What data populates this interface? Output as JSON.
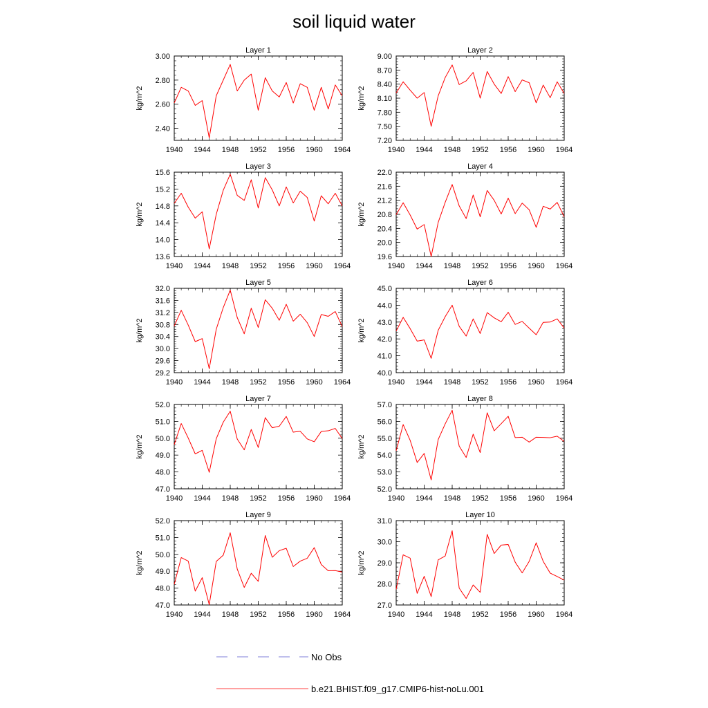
{
  "figure": {
    "title": "soil liquid water",
    "legend": [
      {
        "label": "No Obs",
        "color": "#5555cc",
        "dash": true
      },
      {
        "label": "b.e21.BHIST.f09_g17.CMIP6-hist-noLu.001",
        "color": "#ff0000",
        "dash": false
      }
    ]
  },
  "chart_data": [
    {
      "type": "line",
      "title": "Layer 1",
      "ylabel": "kg/m^2",
      "x": [
        1940,
        1941,
        1942,
        1943,
        1944,
        1945,
        1946,
        1947,
        1948,
        1949,
        1950,
        1951,
        1952,
        1953,
        1954,
        1955,
        1956,
        1957,
        1958,
        1959,
        1960,
        1961,
        1962,
        1963,
        1964
      ],
      "xticks": [
        1940,
        1944,
        1948,
        1952,
        1956,
        1960,
        1964
      ],
      "xlim": [
        1940,
        1964
      ],
      "yticks": [
        "2.40",
        "2.60",
        "2.80",
        "3.00"
      ],
      "ylim": [
        2.3,
        3.0
      ],
      "series": [
        {
          "name": "b.e21.BHIST.f09_g17.CMIP6-hist-noLu.001",
          "color": "#ff0000",
          "values": [
            2.61,
            2.74,
            2.71,
            2.59,
            2.63,
            2.32,
            2.67,
            2.8,
            2.93,
            2.71,
            2.8,
            2.85,
            2.55,
            2.82,
            2.71,
            2.66,
            2.78,
            2.61,
            2.77,
            2.74,
            2.55,
            2.74,
            2.56,
            2.76,
            2.67
          ]
        }
      ]
    },
    {
      "type": "line",
      "title": "Layer 2",
      "ylabel": "kg/m^2",
      "x": [
        1940,
        1941,
        1942,
        1943,
        1944,
        1945,
        1946,
        1947,
        1948,
        1949,
        1950,
        1951,
        1952,
        1953,
        1954,
        1955,
        1956,
        1957,
        1958,
        1959,
        1960,
        1961,
        1962,
        1963,
        1964
      ],
      "xticks": [
        1940,
        1944,
        1948,
        1952,
        1956,
        1960,
        1964
      ],
      "xlim": [
        1940,
        1964
      ],
      "yticks": [
        "7.20",
        "7.50",
        "7.80",
        "8.10",
        "8.40",
        "8.70",
        "9.00"
      ],
      "ylim": [
        7.2,
        9.0
      ],
      "series": [
        {
          "name": "b.e21.BHIST.f09_g17.CMIP6-hist-noLu.001",
          "color": "#ff0000",
          "values": [
            8.21,
            8.45,
            8.27,
            8.1,
            8.22,
            7.5,
            8.15,
            8.54,
            8.81,
            8.39,
            8.47,
            8.65,
            8.1,
            8.67,
            8.4,
            8.2,
            8.56,
            8.24,
            8.49,
            8.43,
            8.0,
            8.38,
            8.11,
            8.45,
            8.2
          ]
        }
      ]
    },
    {
      "type": "line",
      "title": "Layer 3",
      "ylabel": "kg/m^2",
      "x": [
        1940,
        1941,
        1942,
        1943,
        1944,
        1945,
        1946,
        1947,
        1948,
        1949,
        1950,
        1951,
        1952,
        1953,
        1954,
        1955,
        1956,
        1957,
        1958,
        1959,
        1960,
        1961,
        1962,
        1963,
        1964
      ],
      "xticks": [
        1940,
        1944,
        1948,
        1952,
        1956,
        1960,
        1964
      ],
      "xlim": [
        1940,
        1964
      ],
      "yticks": [
        "13.6",
        "14.0",
        "14.4",
        "14.8",
        "15.2",
        "15.6"
      ],
      "ylim": [
        13.6,
        15.6
      ],
      "series": [
        {
          "name": "b.e21.BHIST.f09_g17.CMIP6-hist-noLu.001",
          "color": "#ff0000",
          "values": [
            14.86,
            15.1,
            14.77,
            14.51,
            14.66,
            13.78,
            14.6,
            15.17,
            15.55,
            15.05,
            14.93,
            15.42,
            14.75,
            15.47,
            15.18,
            14.8,
            15.25,
            14.87,
            15.15,
            15.0,
            14.44,
            15.04,
            14.85,
            15.1,
            14.8
          ]
        }
      ]
    },
    {
      "type": "line",
      "title": "Layer 4",
      "ylabel": "kg/m^2",
      "x": [
        1940,
        1941,
        1942,
        1943,
        1944,
        1945,
        1946,
        1947,
        1948,
        1949,
        1950,
        1951,
        1952,
        1953,
        1954,
        1955,
        1956,
        1957,
        1958,
        1959,
        1960,
        1961,
        1962,
        1963,
        1964
      ],
      "xticks": [
        1940,
        1944,
        1948,
        1952,
        1956,
        1960,
        1964
      ],
      "xlim": [
        1940,
        1964
      ],
      "yticks": [
        "19.6",
        "20.0",
        "20.4",
        "20.8",
        "21.2",
        "21.6",
        "22.0"
      ],
      "ylim": [
        19.6,
        22.0
      ],
      "series": [
        {
          "name": "b.e21.BHIST.f09_g17.CMIP6-hist-noLu.001",
          "color": "#ff0000",
          "values": [
            20.79,
            21.13,
            20.78,
            20.38,
            20.51,
            19.6,
            20.57,
            21.14,
            21.65,
            21.04,
            20.68,
            21.35,
            20.73,
            21.48,
            21.2,
            20.81,
            21.26,
            20.82,
            21.12,
            20.93,
            20.43,
            21.03,
            20.95,
            21.14,
            20.73
          ]
        }
      ]
    },
    {
      "type": "line",
      "title": "Layer 5",
      "ylabel": "kg/m^2",
      "x": [
        1940,
        1941,
        1942,
        1943,
        1944,
        1945,
        1946,
        1947,
        1948,
        1949,
        1950,
        1951,
        1952,
        1953,
        1954,
        1955,
        1956,
        1957,
        1958,
        1959,
        1960,
        1961,
        1962,
        1963,
        1964
      ],
      "xticks": [
        1940,
        1944,
        1948,
        1952,
        1956,
        1960,
        1964
      ],
      "xlim": [
        1940,
        1964
      ],
      "yticks": [
        "29.2",
        "29.6",
        "30.0",
        "30.4",
        "30.8",
        "31.2",
        "31.6",
        "32.0"
      ],
      "ylim": [
        29.2,
        32.0
      ],
      "series": [
        {
          "name": "b.e21.BHIST.f09_g17.CMIP6-hist-noLu.001",
          "color": "#ff0000",
          "values": [
            30.75,
            31.27,
            30.78,
            30.23,
            30.33,
            29.33,
            30.64,
            31.36,
            31.94,
            31.03,
            30.49,
            31.34,
            30.7,
            31.62,
            31.34,
            30.94,
            31.47,
            30.91,
            31.14,
            30.86,
            30.4,
            31.13,
            31.07,
            31.23,
            30.73
          ]
        }
      ]
    },
    {
      "type": "line",
      "title": "Layer 6",
      "ylabel": "kg/m^2",
      "x": [
        1940,
        1941,
        1942,
        1943,
        1944,
        1945,
        1946,
        1947,
        1948,
        1949,
        1950,
        1951,
        1952,
        1953,
        1954,
        1955,
        1956,
        1957,
        1958,
        1959,
        1960,
        1961,
        1962,
        1963,
        1964
      ],
      "xticks": [
        1940,
        1944,
        1948,
        1952,
        1956,
        1960,
        1964
      ],
      "xlim": [
        1940,
        1964
      ],
      "yticks": [
        "40.0",
        "41.0",
        "42.0",
        "43.0",
        "44.0",
        "45.0"
      ],
      "ylim": [
        40.0,
        45.0
      ],
      "series": [
        {
          "name": "b.e21.BHIST.f09_g17.CMIP6-hist-noLu.001",
          "color": "#ff0000",
          "values": [
            42.47,
            43.28,
            42.61,
            41.87,
            41.94,
            40.85,
            42.51,
            43.32,
            44.0,
            42.75,
            42.17,
            43.19,
            42.32,
            43.56,
            43.25,
            43.02,
            43.58,
            42.86,
            43.04,
            42.64,
            42.25,
            42.98,
            43.0,
            43.19,
            42.64
          ]
        }
      ]
    },
    {
      "type": "line",
      "title": "Layer 7",
      "ylabel": "kg/m^2",
      "x": [
        1940,
        1941,
        1942,
        1943,
        1944,
        1945,
        1946,
        1947,
        1948,
        1949,
        1950,
        1951,
        1952,
        1953,
        1954,
        1955,
        1956,
        1957,
        1958,
        1959,
        1960,
        1961,
        1962,
        1963,
        1964
      ],
      "xticks": [
        1940,
        1944,
        1948,
        1952,
        1956,
        1960,
        1964
      ],
      "xlim": [
        1940,
        1964
      ],
      "yticks": [
        "47.0",
        "48.0",
        "49.0",
        "50.0",
        "51.0",
        "52.0"
      ],
      "ylim": [
        47.0,
        52.0
      ],
      "series": [
        {
          "name": "b.e21.BHIST.f09_g17.CMIP6-hist-noLu.001",
          "color": "#ff0000",
          "values": [
            49.62,
            50.87,
            50.01,
            49.07,
            49.28,
            47.98,
            49.97,
            50.95,
            51.6,
            49.95,
            49.31,
            50.52,
            49.45,
            51.22,
            50.62,
            50.71,
            51.29,
            50.36,
            50.41,
            49.96,
            49.79,
            50.4,
            50.44,
            50.58,
            49.98
          ]
        }
      ]
    },
    {
      "type": "line",
      "title": "Layer 8",
      "ylabel": "kg/m^2",
      "x": [
        1940,
        1941,
        1942,
        1943,
        1944,
        1945,
        1946,
        1947,
        1948,
        1949,
        1950,
        1951,
        1952,
        1953,
        1954,
        1955,
        1956,
        1957,
        1958,
        1959,
        1960,
        1961,
        1962,
        1963,
        1964
      ],
      "xticks": [
        1940,
        1944,
        1948,
        1952,
        1956,
        1960,
        1964
      ],
      "xlim": [
        1940,
        1964
      ],
      "yticks": [
        "52.0",
        "53.0",
        "54.0",
        "55.0",
        "56.0",
        "57.0"
      ],
      "ylim": [
        52.0,
        57.0
      ],
      "series": [
        {
          "name": "b.e21.BHIST.f09_g17.CMIP6-hist-noLu.001",
          "color": "#ff0000",
          "values": [
            54.26,
            55.81,
            54.87,
            53.56,
            54.1,
            52.53,
            54.92,
            55.85,
            56.66,
            54.53,
            53.86,
            55.24,
            54.15,
            56.51,
            55.44,
            55.86,
            56.3,
            55.04,
            55.06,
            54.77,
            55.06,
            55.05,
            55.03,
            55.12,
            54.81
          ]
        }
      ]
    },
    {
      "type": "line",
      "title": "Layer 9",
      "ylabel": "kg/m^2",
      "x": [
        1940,
        1941,
        1942,
        1943,
        1944,
        1945,
        1946,
        1947,
        1948,
        1949,
        1950,
        1951,
        1952,
        1953,
        1954,
        1955,
        1956,
        1957,
        1958,
        1959,
        1960,
        1961,
        1962,
        1963,
        1964
      ],
      "xticks": [
        1940,
        1944,
        1948,
        1952,
        1956,
        1960,
        1964
      ],
      "xlim": [
        1940,
        1964
      ],
      "yticks": [
        "47.0",
        "48.0",
        "49.0",
        "50.0",
        "51.0",
        "52.0"
      ],
      "ylim": [
        47.0,
        52.0
      ],
      "series": [
        {
          "name": "b.e21.BHIST.f09_g17.CMIP6-hist-noLu.001",
          "color": "#ff0000",
          "values": [
            48.22,
            49.81,
            49.6,
            47.82,
            48.62,
            47.02,
            49.58,
            49.95,
            51.28,
            49.13,
            48.04,
            48.88,
            48.4,
            51.12,
            49.83,
            50.22,
            50.36,
            49.28,
            49.6,
            49.77,
            50.4,
            49.4,
            49.03,
            49.04,
            48.95
          ]
        }
      ]
    },
    {
      "type": "line",
      "title": "Layer 10",
      "ylabel": "kg/m^2",
      "x": [
        1940,
        1941,
        1942,
        1943,
        1944,
        1945,
        1946,
        1947,
        1948,
        1949,
        1950,
        1951,
        1952,
        1953,
        1954,
        1955,
        1956,
        1957,
        1958,
        1959,
        1960,
        1961,
        1962,
        1963,
        1964
      ],
      "xticks": [
        1940,
        1944,
        1948,
        1952,
        1956,
        1960,
        1964
      ],
      "xlim": [
        1940,
        1964
      ],
      "yticks": [
        "27.0",
        "28.0",
        "29.0",
        "30.0",
        "31.0"
      ],
      "ylim": [
        27.0,
        31.0
      ],
      "series": [
        {
          "name": "b.e21.BHIST.f09_g17.CMIP6-hist-noLu.001",
          "color": "#ff0000",
          "values": [
            27.74,
            29.38,
            29.22,
            27.55,
            28.36,
            27.4,
            29.14,
            29.32,
            30.52,
            27.8,
            27.31,
            27.95,
            27.6,
            30.35,
            29.44,
            29.84,
            29.87,
            29.03,
            28.52,
            29.07,
            29.95,
            29.07,
            28.51,
            28.35,
            28.18
          ]
        }
      ]
    }
  ]
}
